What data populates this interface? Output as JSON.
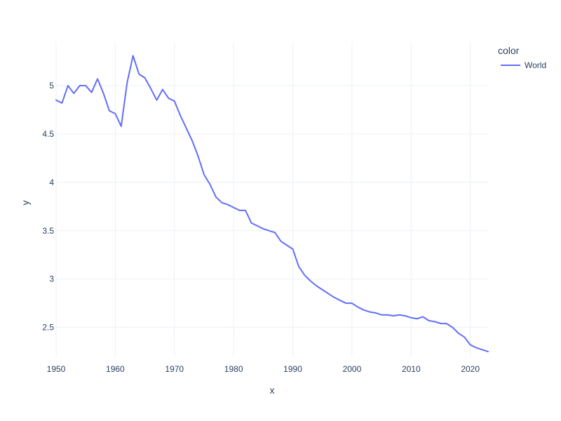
{
  "chart_data": {
    "type": "line",
    "xlabel": "x",
    "ylabel": "y",
    "xlim": [
      1950,
      2023
    ],
    "ylim": [
      2.2,
      5.45
    ],
    "x_ticks": [
      1950,
      1960,
      1970,
      1980,
      1990,
      2000,
      2010,
      2020
    ],
    "x_tick_labels": [
      "1950",
      "1960",
      "1970",
      "1980",
      "1990",
      "2000",
      "2010",
      "2020"
    ],
    "y_ticks": [
      2.5,
      3,
      3.5,
      4,
      4.5,
      5
    ],
    "y_tick_labels": [
      "2.5",
      "3",
      "3.5",
      "4",
      "4.5",
      "5"
    ],
    "grid": true,
    "legend": {
      "title": "color",
      "placement": "top-right"
    },
    "series": [
      {
        "name": "World",
        "color": "#636efa",
        "x": [
          1950,
          1951,
          1952,
          1953,
          1954,
          1955,
          1956,
          1957,
          1958,
          1959,
          1960,
          1961,
          1962,
          1963,
          1964,
          1965,
          1966,
          1967,
          1968,
          1969,
          1970,
          1971,
          1972,
          1973,
          1974,
          1975,
          1976,
          1977,
          1978,
          1979,
          1980,
          1981,
          1982,
          1983,
          1984,
          1985,
          1986,
          1987,
          1988,
          1989,
          1990,
          1991,
          1992,
          1993,
          1994,
          1995,
          1996,
          1997,
          1998,
          1999,
          2000,
          2001,
          2002,
          2003,
          2004,
          2005,
          2006,
          2007,
          2008,
          2009,
          2010,
          2011,
          2012,
          2013,
          2014,
          2015,
          2016,
          2017,
          2018,
          2019,
          2020,
          2021,
          2022,
          2023
        ],
        "y": [
          4.85,
          4.82,
          5.0,
          4.92,
          5.0,
          5.0,
          4.93,
          5.07,
          4.92,
          4.74,
          4.71,
          4.58,
          5.03,
          5.31,
          5.12,
          5.08,
          4.97,
          4.85,
          4.96,
          4.87,
          4.84,
          4.69,
          4.56,
          4.43,
          4.27,
          4.08,
          3.98,
          3.85,
          3.79,
          3.77,
          3.74,
          3.71,
          3.71,
          3.58,
          3.55,
          3.52,
          3.5,
          3.48,
          3.39,
          3.35,
          3.31,
          3.13,
          3.04,
          2.98,
          2.93,
          2.89,
          2.85,
          2.81,
          2.78,
          2.75,
          2.75,
          2.71,
          2.68,
          2.66,
          2.65,
          2.63,
          2.63,
          2.62,
          2.63,
          2.62,
          2.6,
          2.59,
          2.61,
          2.57,
          2.56,
          2.54,
          2.54,
          2.5,
          2.44,
          2.4,
          2.32,
          2.29,
          2.27,
          2.25
        ]
      }
    ]
  }
}
